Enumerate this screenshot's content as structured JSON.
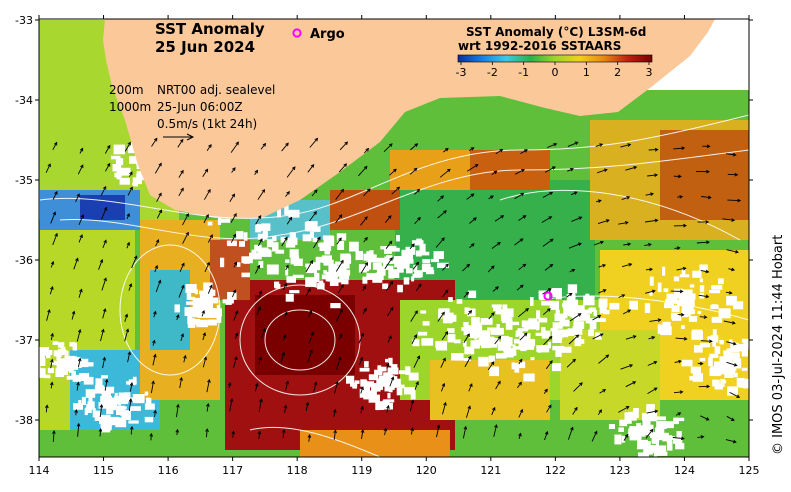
{
  "title": {
    "line1": "SST Anomaly",
    "line2": "25 Jun 2024"
  },
  "argo_label": "Argo",
  "legend": {
    "depth1": "200m",
    "depth2": "1000m",
    "product": "NRT00 adj. sealevel",
    "time": "25-Jun 06:00Z",
    "scale": "0.5m/s (1kt 24h)"
  },
  "colorbar": {
    "title_line1": "SST Anomaly (°C) L3SM-6d",
    "title_line2": "wrt 1992-2016 SSTAARS",
    "ticks": [
      "-3",
      "-2",
      "-1",
      "0",
      "1",
      "2",
      "3"
    ],
    "stops": [
      "#0a2e9e",
      "#1a7fe0",
      "#3fc8e0",
      "#2fb04a",
      "#9cd62a",
      "#f0d020",
      "#e88a10",
      "#c02010",
      "#7a0000"
    ]
  },
  "credit": "© IMOS 03-Jul-2024 11:44 Hobart",
  "axes": {
    "x_ticks": [
      "114",
      "115",
      "116",
      "117",
      "118",
      "119",
      "120",
      "121",
      "122",
      "123",
      "124",
      "125"
    ],
    "y_ticks": [
      "-33",
      "-34",
      "-35",
      "-36",
      "-37",
      "-38"
    ]
  },
  "colors": {
    "land": "#fbc89a",
    "argo": "#ff00ff"
  }
}
